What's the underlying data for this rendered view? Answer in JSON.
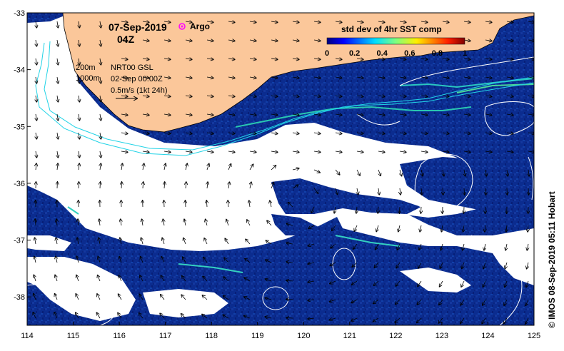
{
  "map": {
    "date": "07-Sep-2019",
    "time": "04Z",
    "legend_argo": "Argo",
    "colorbar": {
      "title": "std dev of 4hr SST comp",
      "ticks": [
        "0",
        "0.2",
        "0.4",
        "0.6",
        "0.8",
        "1"
      ],
      "range": [
        0,
        1
      ]
    },
    "contours": {
      "label_200m": "200m",
      "label_1000m": "1000m",
      "altimetry": "NRT00 GSL",
      "altimetry_date": "02-Sep 00:00Z",
      "vector_scale": "0.5m/s (1kt 24h)"
    },
    "x_ticks": [
      "114",
      "115",
      "116",
      "117",
      "118",
      "119",
      "120",
      "121",
      "122",
      "123",
      "124",
      "125"
    ],
    "y_ticks": [
      "-33",
      "-34",
      "-35",
      "-36",
      "-37",
      "-38"
    ],
    "lon_range": [
      114,
      125
    ],
    "lat_range": [
      -38.5,
      -33
    ],
    "credit": "© IMOS 08-Sep-2019 05:11 Hobart",
    "colors": {
      "land": "#fbc79a",
      "ocean_data": "#0a2a8c",
      "cloud": "#ffffff",
      "shelf_contour": "#22d3e6",
      "ssh_contour": "#ffffff",
      "argo": "#ff00ff"
    }
  }
}
